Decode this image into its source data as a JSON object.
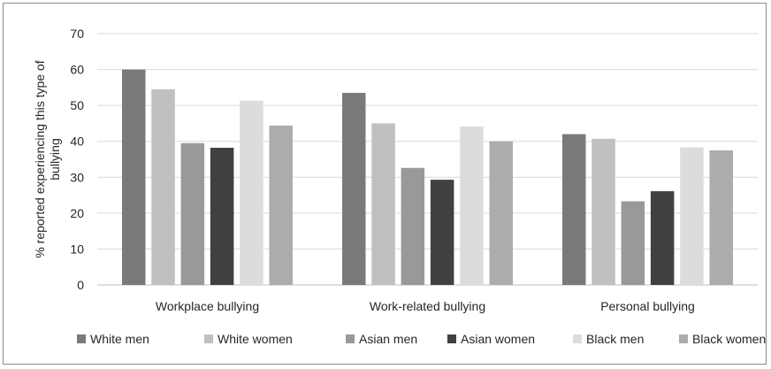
{
  "chart_data": {
    "type": "bar",
    "title": "",
    "xlabel": "",
    "ylabel": "% reported experiencing this type of bullying",
    "ylabel_lines": [
      "% reported experiencing this type of",
      "bullying"
    ],
    "ylim": [
      0,
      70
    ],
    "yticks": [
      0,
      10,
      20,
      30,
      40,
      50,
      60,
      70
    ],
    "grid": true,
    "legend": "bottom",
    "categories": [
      "Workplace bullying",
      "Work-related bullying",
      "Personal bullying"
    ],
    "series": [
      {
        "name": "White men",
        "color": "#7a7a7a",
        "values": [
          60.0,
          53.5,
          42.0
        ]
      },
      {
        "name": "White women",
        "color": "#c0c0c0",
        "values": [
          54.5,
          45.0,
          40.7
        ]
      },
      {
        "name": "Asian men",
        "color": "#999999",
        "values": [
          39.5,
          32.6,
          23.3
        ]
      },
      {
        "name": "Asian women",
        "color": "#404040",
        "values": [
          38.2,
          29.3,
          26.1
        ]
      },
      {
        "name": "Black men",
        "color": "#dcdcdc",
        "values": [
          51.3,
          44.1,
          38.3
        ]
      },
      {
        "name": "Black women",
        "color": "#acacac",
        "values": [
          44.4,
          40.0,
          37.5
        ]
      }
    ]
  }
}
